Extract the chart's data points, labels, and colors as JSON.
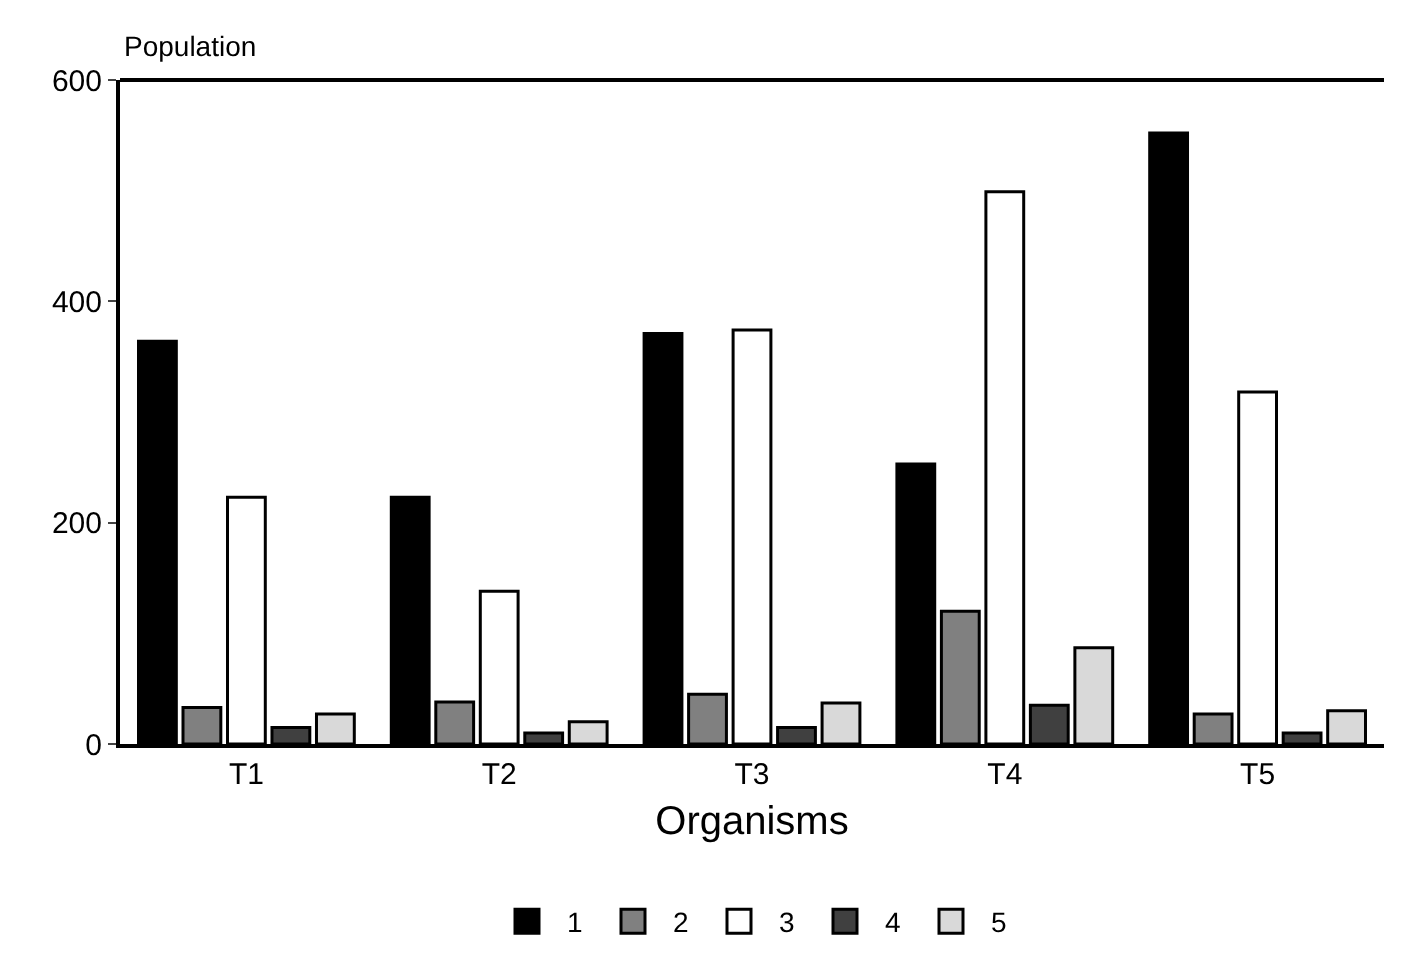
{
  "chart_data": {
    "type": "bar",
    "xlabel": "Organisms",
    "ylabel": "Population",
    "categories": [
      "T1",
      "T2",
      "T3",
      "T4",
      "T5"
    ],
    "series": [
      {
        "name": "1",
        "color": "#000000",
        "values": [
          364,
          223,
          371,
          253,
          552
        ]
      },
      {
        "name": "2",
        "color": "#808080",
        "values": [
          33,
          38,
          45,
          120,
          27
        ]
      },
      {
        "name": "3",
        "color": "#ffffff",
        "values": [
          223,
          138,
          374,
          499,
          318
        ]
      },
      {
        "name": "4",
        "color": "#404040",
        "values": [
          15,
          10,
          15,
          35,
          10
        ]
      },
      {
        "name": "5",
        "color": "#d9d9d9",
        "values": [
          27,
          20,
          37,
          87,
          30
        ]
      }
    ],
    "ylim": [
      0,
      600
    ],
    "yticks": [
      0,
      200,
      400,
      600
    ],
    "legend": "bottom"
  }
}
